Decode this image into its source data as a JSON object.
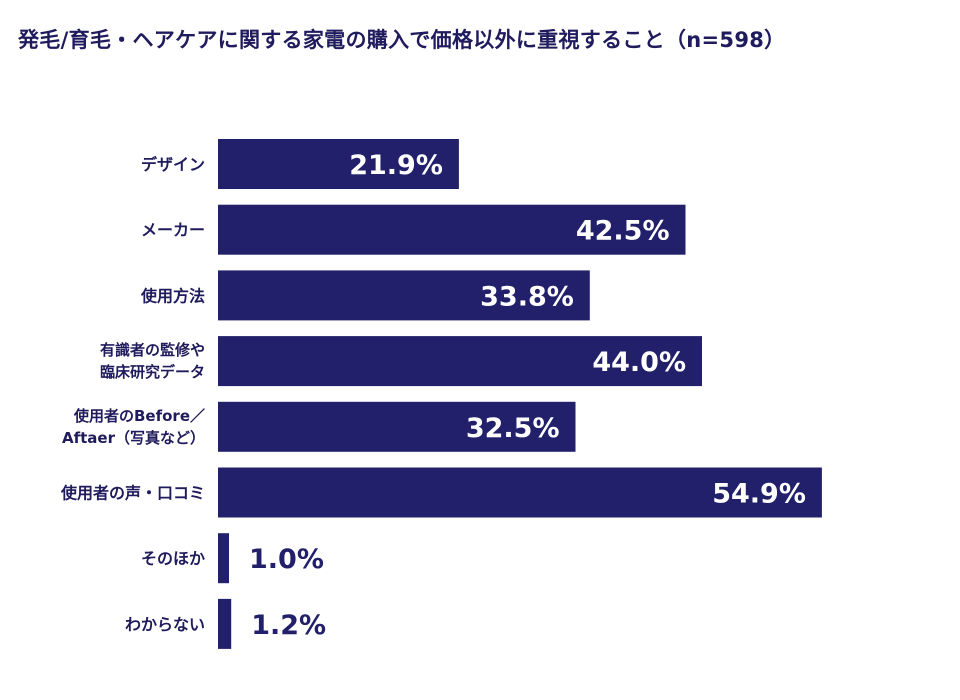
{
  "chart_data": {
    "type": "bar",
    "orientation": "horizontal",
    "title": "発毛/育毛・ヘアケアに関する家電の購入で価格以外に重視すること（n=598）",
    "categories": [
      [
        "デザイン"
      ],
      [
        "メーカー"
      ],
      [
        "使用方法"
      ],
      [
        "有識者の監修や",
        "臨床研究データ"
      ],
      [
        "使用者のBefore／",
        "Aftaer（写真など）"
      ],
      [
        "使用者の声・口コミ"
      ],
      [
        "そのほか"
      ],
      [
        "わからない"
      ]
    ],
    "values": [
      21.9,
      42.5,
      33.8,
      44.0,
      32.5,
      54.9,
      1.0,
      1.2
    ],
    "value_labels": [
      "21.9%",
      "42.5%",
      "33.8%",
      "44.0%",
      "32.5%",
      "54.9%",
      "1.0%",
      "1.2%"
    ],
    "unit": "%",
    "xlim": [
      0,
      100
    ],
    "grid": false,
    "legend": "none",
    "colors": {
      "bar": "#22206a",
      "label_inside": "#ffffff",
      "label_outside": "#22206a",
      "text": "#1f1b5c"
    }
  }
}
